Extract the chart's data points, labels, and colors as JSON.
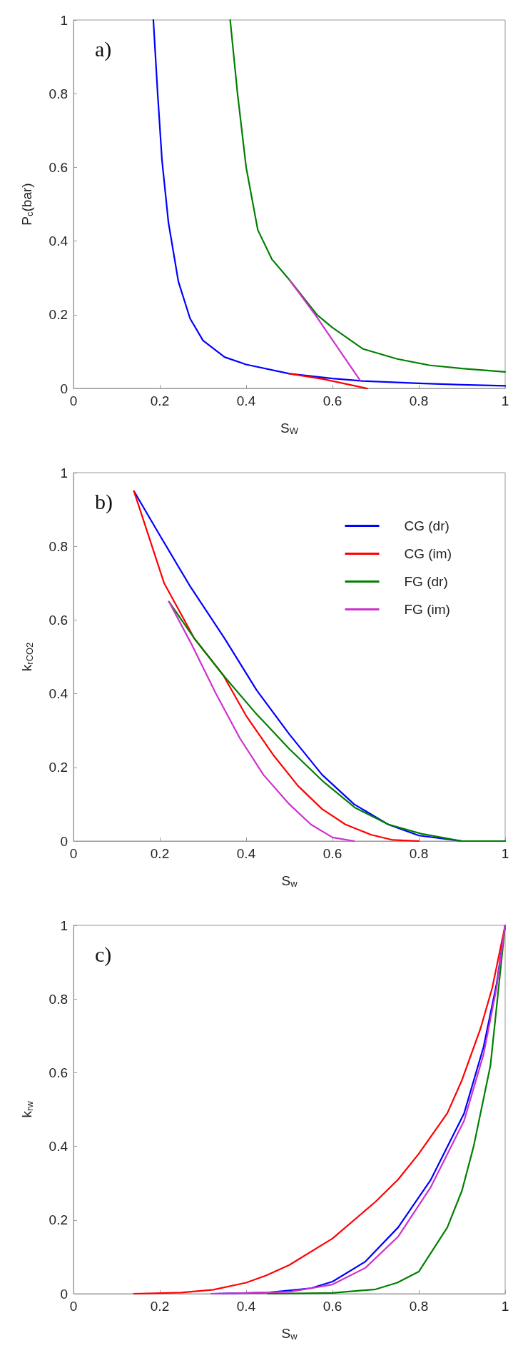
{
  "chart_data": [
    {
      "type": "line",
      "xlabel": "S$_{W}$",
      "ylabel": "P$_{c}$(bar)",
      "annotations": [
        "a)"
      ],
      "xlim": [
        0,
        1
      ],
      "ylim": [
        0,
        1
      ],
      "xticks": [
        0,
        0.2,
        0.4,
        0.6,
        0.8,
        1
      ],
      "yticks": [
        0,
        0.2,
        0.4,
        0.6,
        0.8,
        1
      ],
      "grid": false,
      "legend": false,
      "series": [
        {
          "color": "#0000ff",
          "x": [
            0.185,
            0.195,
            0.205,
            0.22,
            0.243,
            0.27,
            0.3,
            0.35,
            0.4,
            0.5,
            0.6,
            0.67,
            0.8,
            0.9,
            1
          ],
          "values": [
            1,
            0.8,
            0.62,
            0.45,
            0.29,
            0.19,
            0.13,
            0.085,
            0.065,
            0.04,
            0.027,
            0.02,
            0.014,
            0.01,
            0.007
          ]
        },
        {
          "color": "#ff0000",
          "x": [
            0.5,
            0.58,
            0.64,
            0.68
          ],
          "values": [
            0.04,
            0.025,
            0.01,
            0
          ]
        },
        {
          "color": "#008000",
          "x": [
            0.363,
            0.38,
            0.4,
            0.427,
            0.46,
            0.5,
            0.564,
            0.6,
            0.671,
            0.75,
            0.824,
            0.9,
            1
          ],
          "values": [
            1,
            0.8,
            0.6,
            0.43,
            0.35,
            0.295,
            0.2,
            0.165,
            0.107,
            0.08,
            0.063,
            0.054,
            0.045
          ]
        },
        {
          "color": "#cc33cc",
          "x": [
            0.5,
            0.56,
            0.665
          ],
          "values": [
            0.295,
            0.2,
            0.02
          ]
        }
      ]
    },
    {
      "type": "line",
      "xlabel": "S$_{w}$",
      "ylabel": "k$_{rCO2}$",
      "annotations": [
        "b)"
      ],
      "xlim": [
        0,
        1
      ],
      "ylim": [
        0,
        1
      ],
      "xticks": [
        0,
        0.2,
        0.4,
        0.6,
        0.8,
        1
      ],
      "yticks": [
        0,
        0.2,
        0.4,
        0.6,
        0.8,
        1
      ],
      "grid": false,
      "legend": "top right",
      "series": [
        {
          "name": "CG (dr)",
          "color": "#0000ff",
          "x": [
            0.14,
            0.2,
            0.271,
            0.35,
            0.424,
            0.5,
            0.576,
            0.65,
            0.729,
            0.8,
            0.9,
            1
          ],
          "values": [
            0.95,
            0.83,
            0.69,
            0.55,
            0.41,
            0.29,
            0.18,
            0.1,
            0.045,
            0.015,
            0,
            0
          ]
        },
        {
          "name": "CG (im)",
          "color": "#ff0000",
          "x": [
            0.14,
            0.21,
            0.28,
            0.347,
            0.4,
            0.462,
            0.52,
            0.576,
            0.63,
            0.69,
            0.74,
            0.8
          ],
          "values": [
            0.95,
            0.7,
            0.55,
            0.45,
            0.34,
            0.235,
            0.15,
            0.087,
            0.045,
            0.017,
            0.003,
            0
          ]
        },
        {
          "name": "FG (dr)",
          "color": "#008000",
          "x": [
            0.221,
            0.28,
            0.347,
            0.42,
            0.5,
            0.58,
            0.653,
            0.73,
            0.805,
            0.9,
            1
          ],
          "values": [
            0.65,
            0.55,
            0.45,
            0.35,
            0.25,
            0.16,
            0.09,
            0.045,
            0.02,
            0,
            0
          ]
        },
        {
          "name": "FG (im)",
          "color": "#cc33cc",
          "x": [
            0.221,
            0.271,
            0.33,
            0.385,
            0.44,
            0.5,
            0.55,
            0.6,
            0.65
          ],
          "values": [
            0.65,
            0.54,
            0.4,
            0.28,
            0.18,
            0.1,
            0.045,
            0.01,
            0
          ]
        }
      ]
    },
    {
      "type": "line",
      "xlabel": "S$_{w}$",
      "ylabel": "k$_{rw}$",
      "annotations": [
        "c)"
      ],
      "xlim": [
        0,
        1
      ],
      "ylim": [
        0,
        1
      ],
      "xticks": [
        0,
        0.2,
        0.4,
        0.6,
        0.8,
        1
      ],
      "yticks": [
        0,
        0.2,
        0.4,
        0.6,
        0.8,
        1
      ],
      "grid": false,
      "legend": false,
      "series": [
        {
          "color": "#0000ff",
          "x": [
            0.32,
            0.45,
            0.55,
            0.6,
            0.676,
            0.752,
            0.828,
            0.905,
            0.95,
            0.98,
            1
          ],
          "values": [
            0,
            0.003,
            0.015,
            0.033,
            0.087,
            0.18,
            0.31,
            0.49,
            0.67,
            0.84,
            1
          ]
        },
        {
          "color": "#ff0000",
          "x": [
            0.14,
            0.25,
            0.324,
            0.4,
            0.447,
            0.5,
            0.6,
            0.7,
            0.752,
            0.8,
            0.866,
            0.9,
            0.943,
            0.97,
            1
          ],
          "values": [
            0,
            0.003,
            0.011,
            0.03,
            0.05,
            0.078,
            0.15,
            0.25,
            0.31,
            0.38,
            0.49,
            0.58,
            0.72,
            0.83,
            1
          ]
        },
        {
          "color": "#008000",
          "x": [
            0.45,
            0.6,
            0.7,
            0.75,
            0.8,
            0.866,
            0.9,
            0.927,
            0.966,
            1
          ],
          "values": [
            0,
            0.002,
            0.012,
            0.03,
            0.06,
            0.18,
            0.28,
            0.4,
            0.62,
            1
          ]
        },
        {
          "color": "#cc33cc",
          "x": [
            0.32,
            0.5,
            0.6,
            0.676,
            0.752,
            0.828,
            0.905,
            0.95,
            0.98,
            1
          ],
          "values": [
            0,
            0.005,
            0.025,
            0.07,
            0.155,
            0.29,
            0.47,
            0.65,
            0.83,
            1
          ]
        }
      ]
    }
  ]
}
